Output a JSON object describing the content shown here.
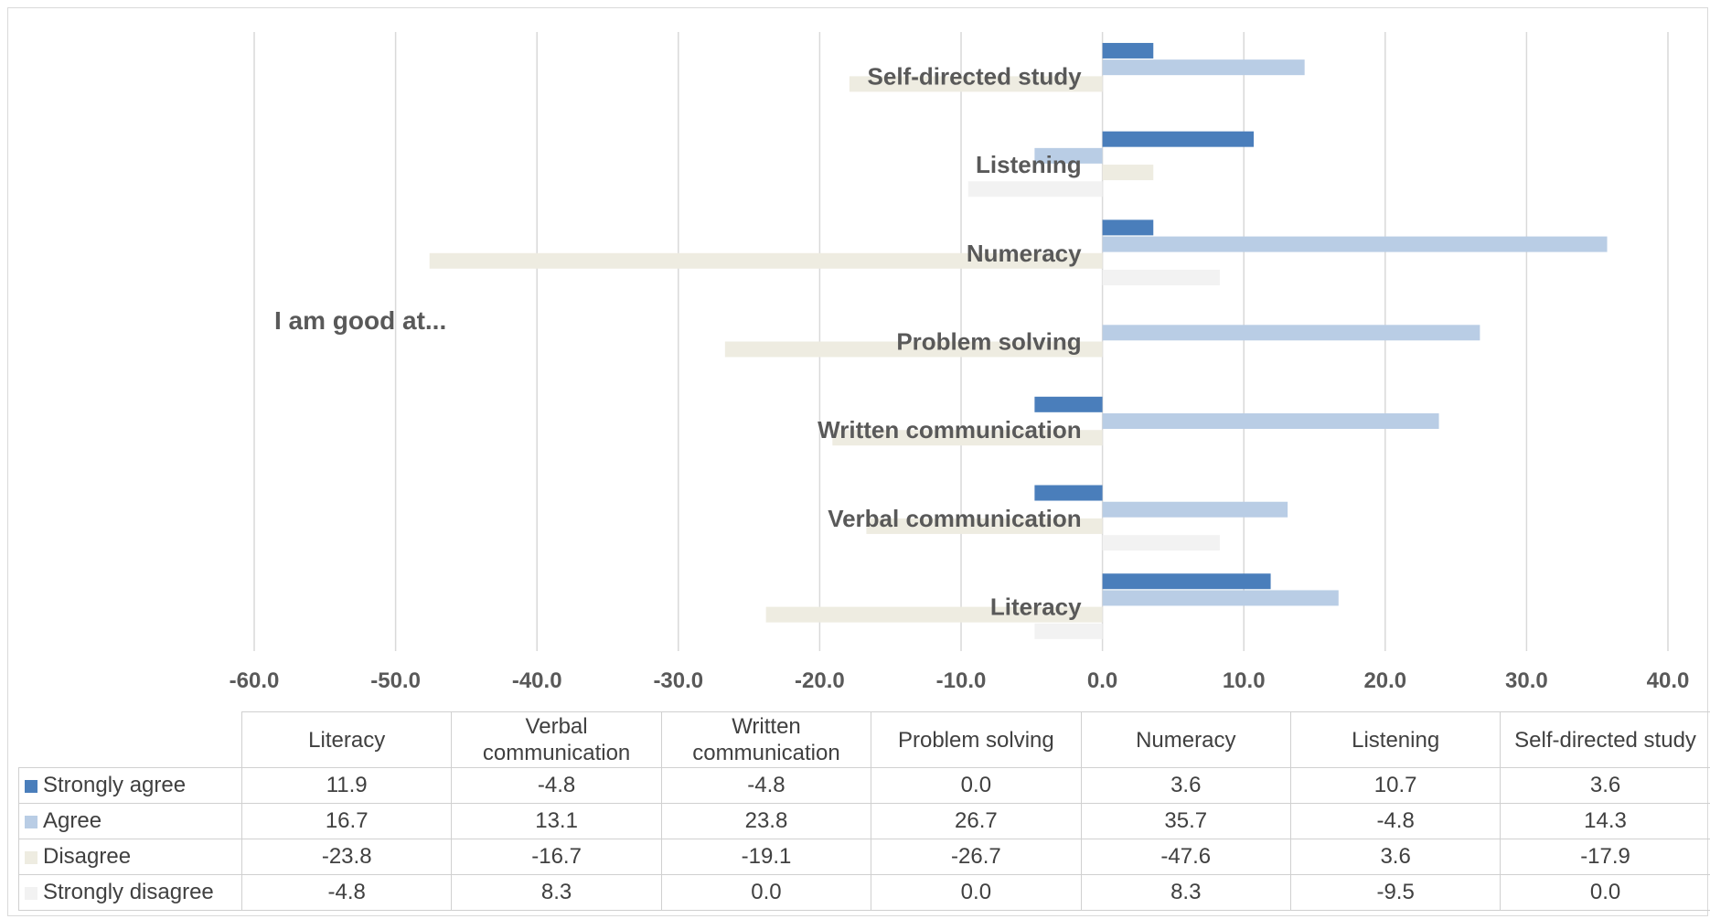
{
  "chart_data": {
    "type": "bar",
    "orientation": "horizontal",
    "annotation": "I am good at...",
    "categories": [
      "Literacy",
      "Verbal communication",
      "Written communication",
      "Problem solving",
      "Numeracy",
      "Listening",
      "Self-directed study"
    ],
    "table_headers": [
      "Literacy",
      "Verbal\ncommunication",
      "Written\ncommunication",
      "Problem solving",
      "Numeracy",
      "Listening",
      "Self-directed study"
    ],
    "series": [
      {
        "name": "Strongly agree",
        "color": "#4a7ebb",
        "values": [
          11.9,
          -4.8,
          -4.8,
          0.0,
          3.6,
          10.7,
          3.6
        ]
      },
      {
        "name": "Agree",
        "color": "#b9cde5",
        "values": [
          16.7,
          13.1,
          23.8,
          26.7,
          35.7,
          -4.8,
          14.3
        ]
      },
      {
        "name": "Disagree",
        "color": "#eeece1",
        "values": [
          -23.8,
          -16.7,
          -19.1,
          -26.7,
          -47.6,
          3.6,
          -17.9
        ]
      },
      {
        "name": "Strongly disagree",
        "color": "#f2f2f2",
        "values": [
          -4.8,
          8.3,
          0.0,
          0.0,
          8.3,
          -9.5,
          0.0
        ]
      }
    ],
    "xlim": [
      -60,
      40
    ],
    "xticks": [
      "-60.0",
      "-50.0",
      "-40.0",
      "-30.0",
      "-20.0",
      "-10.0",
      "0.0",
      "10.0",
      "20.0",
      "30.0",
      "40.0"
    ],
    "grid": "vertical",
    "legend": "data-table"
  }
}
